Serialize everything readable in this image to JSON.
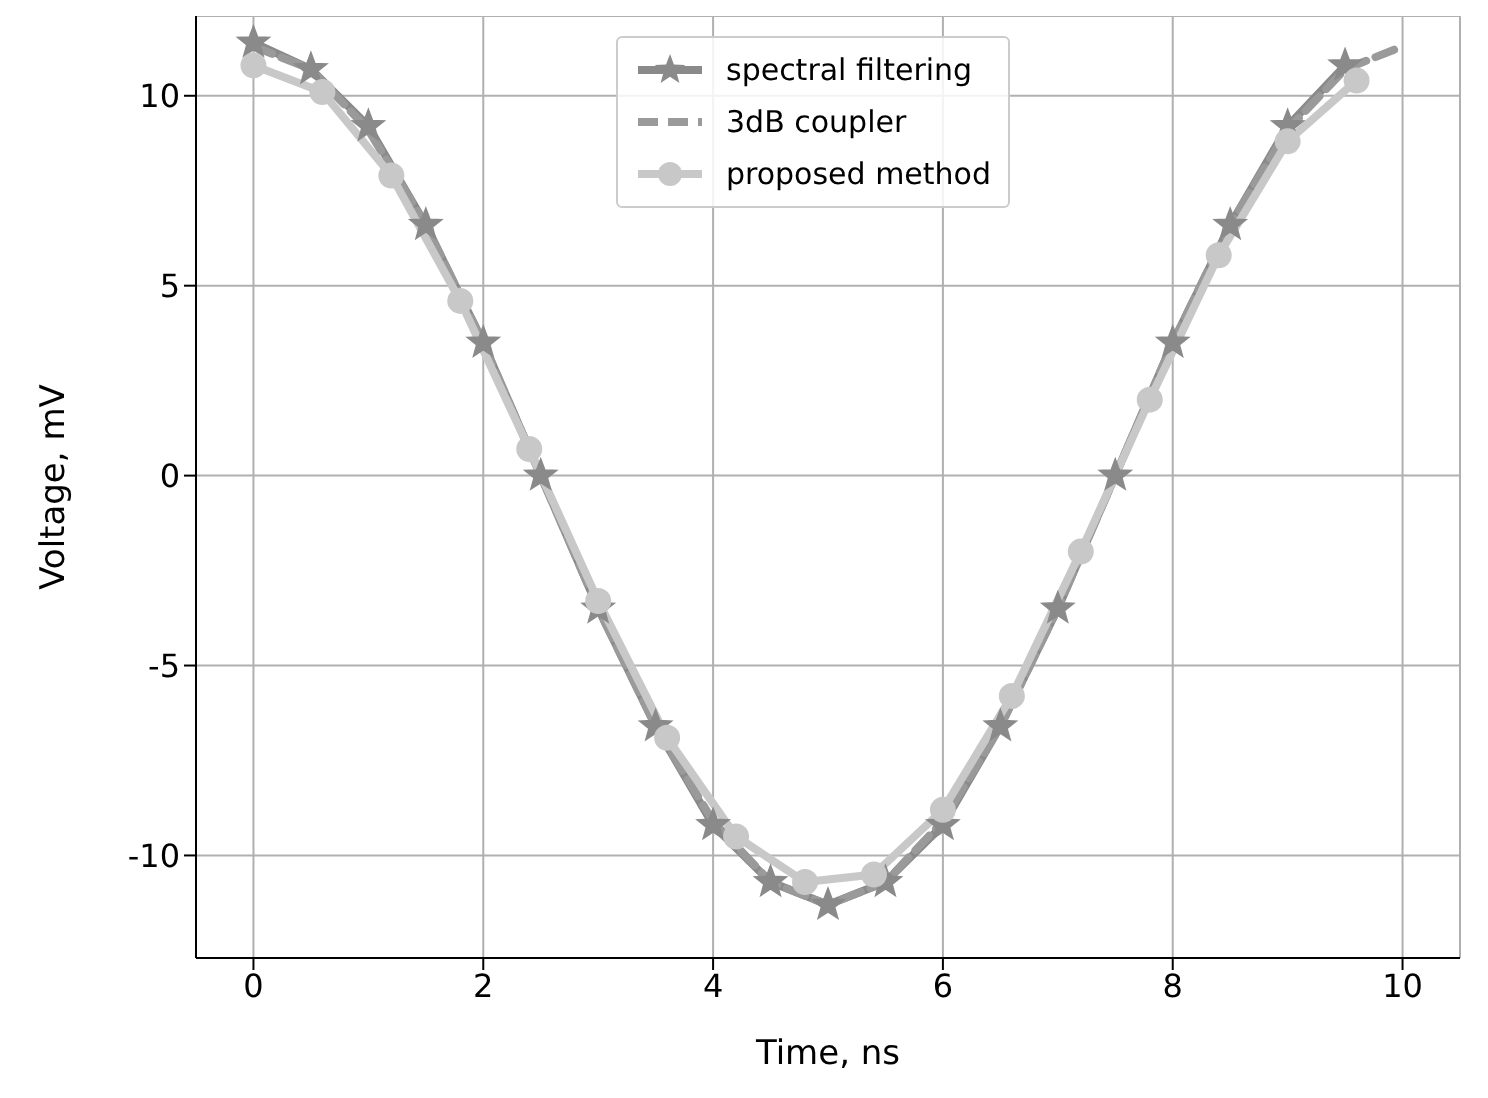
{
  "chart_data": {
    "type": "line",
    "xlabel": "Time, ns",
    "ylabel": "Voltage, mV",
    "xlim": [
      -0.5,
      10.5
    ],
    "ylim": [
      -12.7,
      12.1
    ],
    "xticks": [
      0,
      2,
      4,
      6,
      8,
      10
    ],
    "yticks": [
      -10,
      -5,
      0,
      5,
      10
    ],
    "grid": true,
    "legend": "top",
    "series": [
      {
        "name": "spectral filtering",
        "color": "#8a8a8a",
        "marker": "star",
        "line_style": "solid",
        "x": [
          0,
          0.5,
          1,
          1.5,
          2,
          2.5,
          3,
          3.5,
          4,
          4.5,
          5,
          5.5,
          6,
          6.5,
          7,
          7.5,
          8,
          8.5,
          9,
          9.5
        ],
        "values": [
          11.4,
          10.7,
          9.2,
          6.6,
          3.5,
          0,
          -3.5,
          -6.6,
          -9.2,
          -10.7,
          -11.3,
          -10.7,
          -9.2,
          -6.6,
          -3.5,
          0,
          3.5,
          6.6,
          9.2,
          10.8
        ]
      },
      {
        "name": "3dB coupler",
        "color": "#9a9a9a",
        "marker": "none",
        "line_style": "dashed",
        "x": [
          0,
          0.5,
          1,
          1.5,
          2,
          2.5,
          3,
          3.5,
          4,
          4.5,
          5,
          5.5,
          6,
          6.5,
          7,
          7.5,
          8,
          8.5,
          9,
          9.5,
          10
        ],
        "values": [
          11.3,
          10.7,
          9.1,
          6.6,
          3.5,
          0,
          -3.5,
          -6.6,
          -9.1,
          -10.7,
          -11.3,
          -10.7,
          -9.1,
          -6.6,
          -3.5,
          0,
          3.5,
          6.6,
          9.1,
          10.7,
          11.3
        ]
      },
      {
        "name": "proposed method",
        "color": "#c8c8c8",
        "marker": "circle",
        "line_style": "solid",
        "x": [
          0,
          0.6,
          1.2,
          1.8,
          2.4,
          3.0,
          3.6,
          4.2,
          4.8,
          5.4,
          6.0,
          6.6,
          7.2,
          7.8,
          8.4,
          9.0,
          9.6
        ],
        "values": [
          10.8,
          10.1,
          7.9,
          4.6,
          0.7,
          -3.3,
          -6.9,
          -9.5,
          -10.7,
          -10.5,
          -8.8,
          -5.8,
          -2.0,
          2.0,
          5.8,
          8.8,
          10.4
        ]
      }
    ]
  }
}
